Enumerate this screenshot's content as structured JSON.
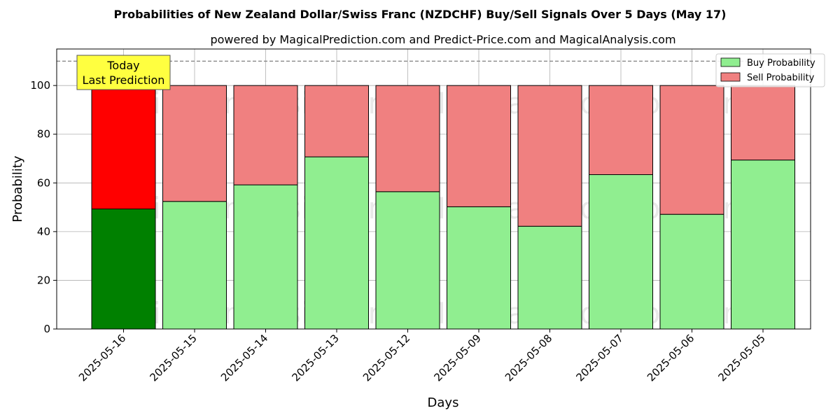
{
  "chart_data": {
    "type": "bar",
    "stacked": true,
    "title": "Probabilities of New Zealand Dollar/Swiss Franc (NZDCHF) Buy/Sell Signals Over 5 Days (May 17)",
    "subtitle": "powered by MagicalPrediction.com and Predict-Price.com and MagicalAnalysis.com",
    "xlabel": "Days",
    "ylabel": "Probability",
    "ylim": [
      0,
      115
    ],
    "yticks": [
      0,
      20,
      40,
      60,
      80,
      100
    ],
    "grid": true,
    "legend_position": "top-right",
    "reference_line": 110,
    "categories": [
      "2025-05-16",
      "2025-05-15",
      "2025-05-14",
      "2025-05-13",
      "2025-05-12",
      "2025-05-09",
      "2025-05-08",
      "2025-05-07",
      "2025-05-06",
      "2025-05-05"
    ],
    "series": [
      {
        "name": "Buy Probability",
        "color": "#90ee90",
        "highlight_color": "#008000",
        "values": [
          49.3,
          52.4,
          59.2,
          70.7,
          56.4,
          50.2,
          42.2,
          63.4,
          47.1,
          69.4
        ]
      },
      {
        "name": "Sell Probability",
        "color": "#f08080",
        "highlight_color": "#ff0000",
        "values": [
          50.7,
          47.6,
          40.8,
          29.3,
          43.6,
          49.8,
          57.8,
          36.6,
          52.9,
          30.6
        ]
      }
    ],
    "annotation": {
      "line1": "Today",
      "line2": "Last Prediction",
      "background": "#ffff40"
    },
    "watermarks": [
      "MagicalAnalysis.com",
      "MagicalPrediction.com"
    ]
  }
}
